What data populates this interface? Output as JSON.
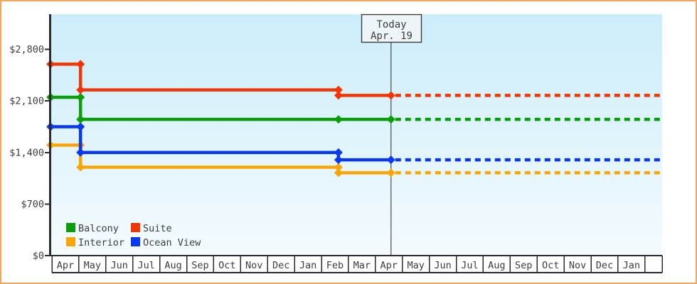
{
  "window": {
    "border_color": "#eda763",
    "background_color": "#ffffff"
  },
  "chart_data": {
    "type": "line",
    "subtype": "step-after price history with dotted forecast",
    "title": "",
    "xlabel": "",
    "ylabel": "",
    "x_categories": [
      "Apr",
      "May",
      "Jun",
      "Jul",
      "Aug",
      "Sep",
      "Oct",
      "Nov",
      "Dec",
      "Jan",
      "Feb",
      "Mar",
      "Apr",
      "May",
      "Jun",
      "Jul",
      "Aug",
      "Sep",
      "Oct",
      "Nov",
      "Dec",
      "Jan"
    ],
    "y_ticks": {
      "values": [
        0,
        700,
        1400,
        2100,
        2800
      ],
      "labels": [
        "$0",
        "$700",
        "$1,400",
        "$2,100",
        "$2,800"
      ]
    },
    "ylim": [
      0,
      3280
    ],
    "grid": false,
    "plot_bg_gradient": [
      "#cbedfa",
      "#f4fbfe"
    ],
    "axis_color": "#2b2b2b",
    "today_annotation": {
      "line1": "Today",
      "line2": "Apr. 19",
      "month_x": 12.58,
      "line_color": "#4a4a4a",
      "box_fill": "#eef5f9",
      "box_stroke": "#3d3d3d"
    },
    "forecast_note": "dotted segments after Today continue last price to right edge",
    "series": [
      {
        "name": "Interior",
        "color": "#f9a604",
        "points": [
          [
            -0.05,
            1500
          ],
          [
            1.06,
            1500
          ],
          [
            1.06,
            1200
          ],
          [
            10.63,
            1200
          ],
          [
            10.63,
            1125
          ],
          [
            12.58,
            1125
          ]
        ],
        "forecast_value": 1125
      },
      {
        "name": "Ocean View",
        "color": "#0838ef",
        "points": [
          [
            -0.05,
            1750
          ],
          [
            1.06,
            1750
          ],
          [
            1.06,
            1400
          ],
          [
            10.63,
            1400
          ],
          [
            10.63,
            1300
          ],
          [
            12.58,
            1300
          ]
        ],
        "forecast_value": 1300
      },
      {
        "name": "Balcony",
        "color": "#0a9f0a",
        "points": [
          [
            -0.05,
            2150
          ],
          [
            1.06,
            2150
          ],
          [
            1.06,
            1850
          ],
          [
            10.63,
            1850
          ],
          [
            12.58,
            1850
          ]
        ],
        "forecast_value": 1850
      },
      {
        "name": "Suite",
        "color": "#f23505",
        "points": [
          [
            -0.05,
            2600
          ],
          [
            1.06,
            2600
          ],
          [
            1.06,
            2250
          ],
          [
            10.63,
            2250
          ],
          [
            10.63,
            2175
          ],
          [
            12.58,
            2175
          ]
        ],
        "forecast_value": 2175
      }
    ],
    "legend": {
      "position": "bottom-left",
      "rows": [
        [
          {
            "label": "Balcony"
          },
          {
            "label": "Suite"
          }
        ],
        [
          {
            "label": "Interior"
          },
          {
            "label": "Ocean View"
          }
        ]
      ]
    }
  }
}
